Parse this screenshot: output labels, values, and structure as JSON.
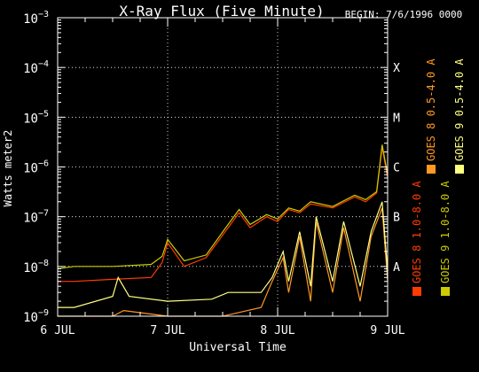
{
  "chart_data": {
    "type": "line",
    "title": "X-Ray Flux (Five Minute)",
    "begin_label": "BEGIN: 7/6/1996 0000",
    "ylabel": "Watts meter2",
    "xlabel": "Universal Time",
    "y_scale": "log",
    "ylim": [
      1e-09,
      0.001
    ],
    "y_ticks": [
      {
        "base": "10",
        "exp": "-9"
      },
      {
        "base": "10",
        "exp": "-8"
      },
      {
        "base": "10",
        "exp": "-7"
      },
      {
        "base": "10",
        "exp": "-6"
      },
      {
        "base": "10",
        "exp": "-5"
      },
      {
        "base": "10",
        "exp": "-4"
      },
      {
        "base": "10",
        "exp": "-3"
      }
    ],
    "x_ticks": [
      "6 JUL",
      "7 JUL",
      "8 JUL",
      "9 JUL"
    ],
    "xlim_days": [
      "1996-07-06T00:00",
      "1996-07-09T00:00"
    ],
    "flare_classes": [
      {
        "label": "A",
        "flux": 1e-08
      },
      {
        "label": "B",
        "flux": 1e-07
      },
      {
        "label": "C",
        "flux": 1e-06
      },
      {
        "label": "M",
        "flux": 1e-05
      },
      {
        "label": "X",
        "flux": 0.0001
      }
    ],
    "grid": "dotted horizontal at each decade; vertical at day boundaries",
    "legend": "right side, vertical",
    "series": [
      {
        "name": "GOES 8 1.0-8.0 A",
        "color": "#ff3c00",
        "x_day": [
          0.0,
          0.15,
          0.5,
          0.85,
          0.95,
          1.0,
          1.15,
          1.35,
          1.55,
          1.65,
          1.75,
          1.9,
          2.0,
          2.1,
          2.2,
          2.3,
          2.5,
          2.7,
          2.8,
          2.9,
          2.95,
          3.0
        ],
        "y": [
          5e-09,
          5e-09,
          5.5e-09,
          6e-09,
          1.2e-08,
          3e-08,
          1e-08,
          1.5e-08,
          6e-08,
          1.2e-07,
          6e-08,
          1e-07,
          8e-08,
          1.4e-07,
          1.2e-07,
          1.8e-07,
          1.5e-07,
          2.5e-07,
          2e-07,
          3e-07,
          2.5e-06,
          6e-07
        ]
      },
      {
        "name": "GOES 9 1.0-8.0 A",
        "color": "#cccc00",
        "x_day": [
          0.0,
          0.15,
          0.5,
          0.85,
          0.95,
          1.0,
          1.15,
          1.35,
          1.55,
          1.65,
          1.75,
          1.9,
          2.0,
          2.1,
          2.2,
          2.3,
          2.5,
          2.7,
          2.8,
          2.9,
          2.95,
          3.0
        ],
        "y": [
          9e-09,
          1e-08,
          1e-08,
          1.1e-08,
          1.6e-08,
          3.5e-08,
          1.3e-08,
          1.7e-08,
          7e-08,
          1.4e-07,
          7e-08,
          1.1e-07,
          9e-08,
          1.5e-07,
          1.3e-07,
          2e-07,
          1.6e-07,
          2.7e-07,
          2.2e-07,
          3.2e-07,
          2.8e-06,
          7e-07
        ]
      },
      {
        "name": "GOES 8 0.5-4.0 A",
        "color": "#ff9922",
        "x_day": [
          0.0,
          0.5,
          0.6,
          1.0,
          1.5,
          1.85,
          1.95,
          2.05,
          2.1,
          2.2,
          2.3,
          2.35,
          2.5,
          2.6,
          2.75,
          2.85,
          2.95,
          3.0
        ],
        "y": [
          1e-09,
          1e-09,
          1.3e-09,
          1e-09,
          1e-09,
          1.5e-09,
          5e-09,
          1.5e-08,
          3e-09,
          4e-08,
          2e-09,
          8e-08,
          3e-09,
          6e-08,
          2e-09,
          4e-08,
          1.5e-07,
          5e-09
        ]
      },
      {
        "name": "GOES 9 0.5-4.0 A",
        "color": "#ffff80",
        "x_day": [
          0.0,
          0.15,
          0.5,
          0.55,
          0.65,
          1.0,
          1.4,
          1.55,
          1.85,
          1.95,
          2.05,
          2.1,
          2.2,
          2.3,
          2.35,
          2.5,
          2.6,
          2.75,
          2.85,
          2.95,
          3.0
        ],
        "y": [
          1.5e-09,
          1.5e-09,
          2.5e-09,
          6e-09,
          2.5e-09,
          2e-09,
          2.2e-09,
          3e-09,
          3e-09,
          6e-09,
          2e-08,
          5e-09,
          5e-08,
          4e-09,
          1e-07,
          5e-09,
          8e-08,
          4e-09,
          5e-08,
          2e-07,
          8e-09
        ]
      }
    ]
  }
}
